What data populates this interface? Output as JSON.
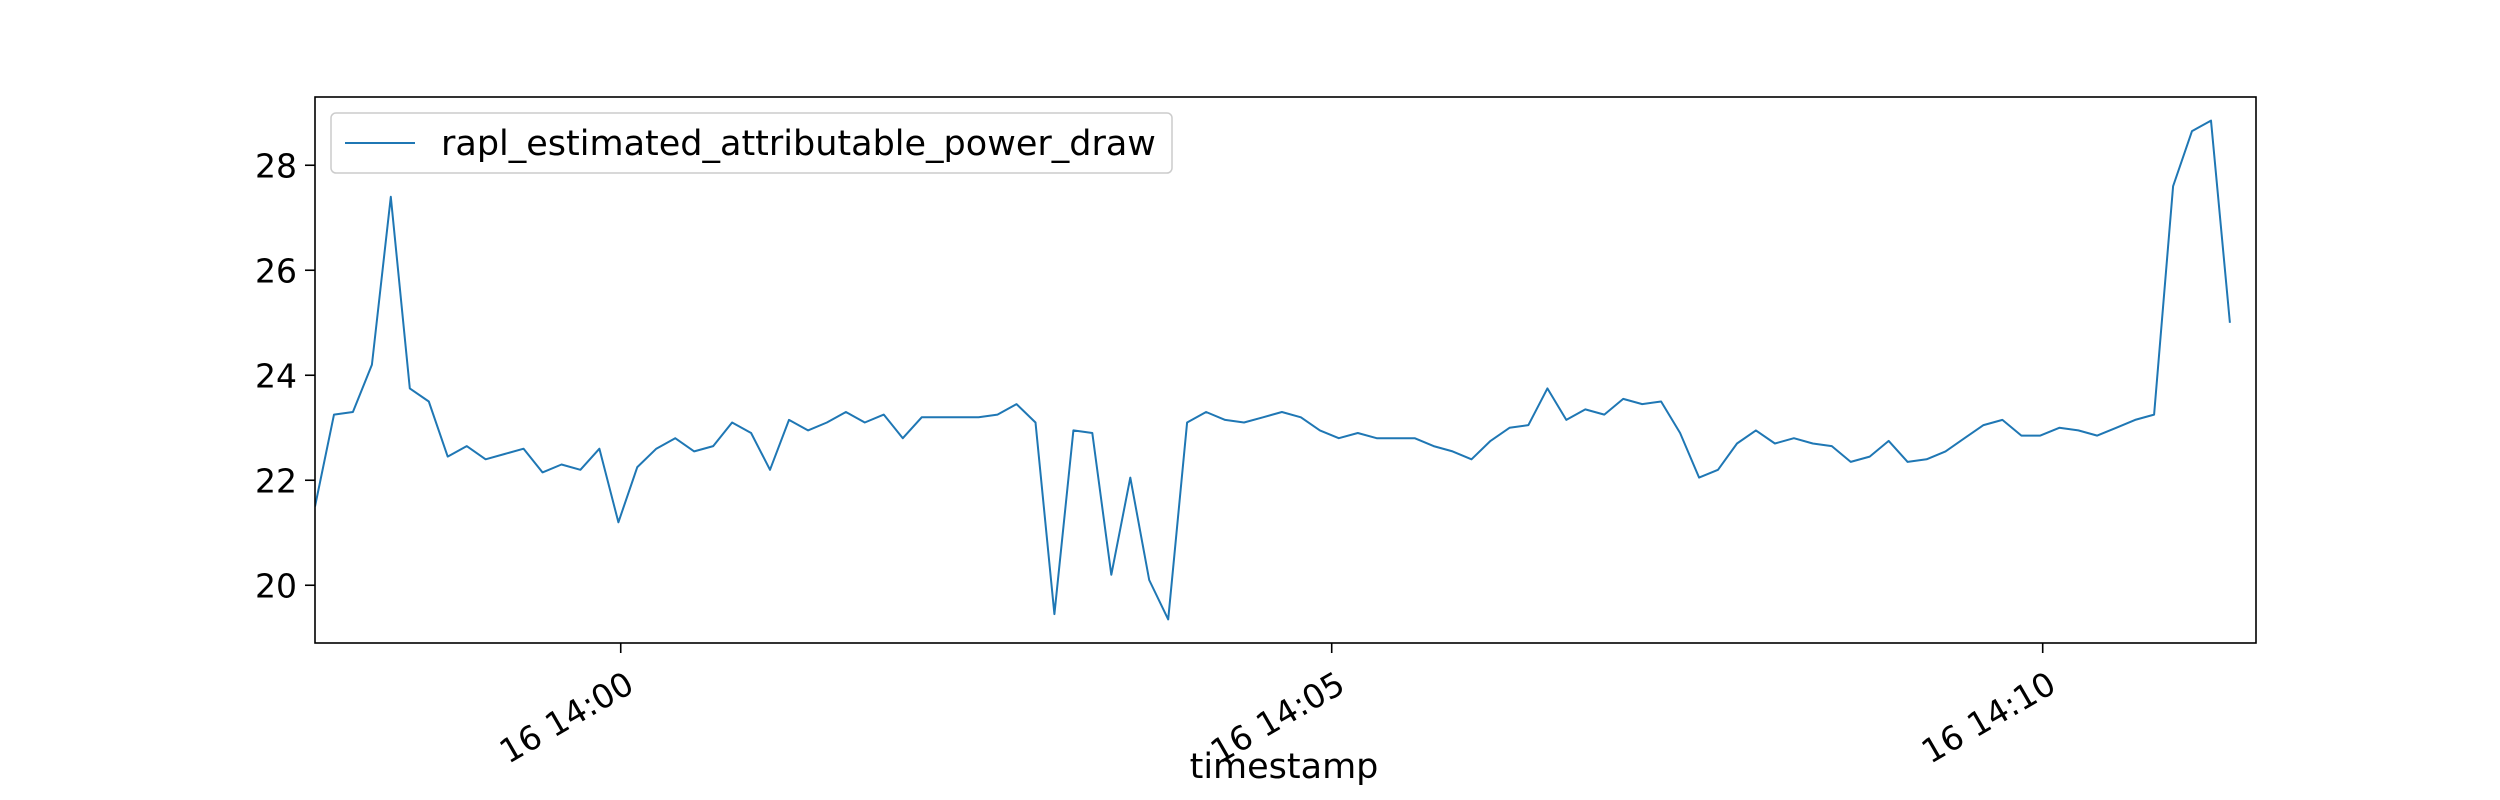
{
  "chart_data": {
    "type": "line",
    "title": "",
    "xlabel": "timestamp",
    "ylabel": "",
    "x_ticks": [
      {
        "minute": 0,
        "label": "16 14:00"
      },
      {
        "minute": 5,
        "label": "16 14:05"
      },
      {
        "minute": 10,
        "label": "16 14:10"
      }
    ],
    "y_ticks": [
      20,
      22,
      24,
      26,
      28
    ],
    "xlim_minutes": [
      -2.15,
      11.5
    ],
    "ylim": [
      18.9,
      29.3
    ],
    "grid": false,
    "legend_location": "upper left",
    "x_start": "16 13:57:51",
    "x_step_seconds": 8,
    "series": [
      {
        "name": "rapl_estimated_attributable_power_draw",
        "color": "#1f77b4",
        "values": [
          21.5,
          23.25,
          23.3,
          24.2,
          27.4,
          23.75,
          23.5,
          22.45,
          22.65,
          22.4,
          22.5,
          22.6,
          22.15,
          22.3,
          22.2,
          22.6,
          21.2,
          22.25,
          22.6,
          22.8,
          22.55,
          22.65,
          23.1,
          22.9,
          22.2,
          23.15,
          22.95,
          23.1,
          23.3,
          23.1,
          23.25,
          22.8,
          23.2,
          23.2,
          23.2,
          23.2,
          23.25,
          23.45,
          23.1,
          19.45,
          22.95,
          22.9,
          20.2,
          22.05,
          20.1,
          19.35,
          23.1,
          23.3,
          23.15,
          23.1,
          23.2,
          23.3,
          23.2,
          22.95,
          22.8,
          22.9,
          22.8,
          22.8,
          22.8,
          22.65,
          22.55,
          22.4,
          22.75,
          23.0,
          23.05,
          23.75,
          23.15,
          23.35,
          23.25,
          23.55,
          23.45,
          23.5,
          22.9,
          22.05,
          22.2,
          22.7,
          22.95,
          22.7,
          22.8,
          22.7,
          22.65,
          22.35,
          22.45,
          22.75,
          22.35,
          22.4,
          22.55,
          22.8,
          23.05,
          23.15,
          22.85,
          22.85,
          23.0,
          22.95,
          22.85,
          23.0,
          23.15,
          23.25,
          27.6,
          28.65,
          28.85,
          25.0
        ]
      }
    ]
  }
}
